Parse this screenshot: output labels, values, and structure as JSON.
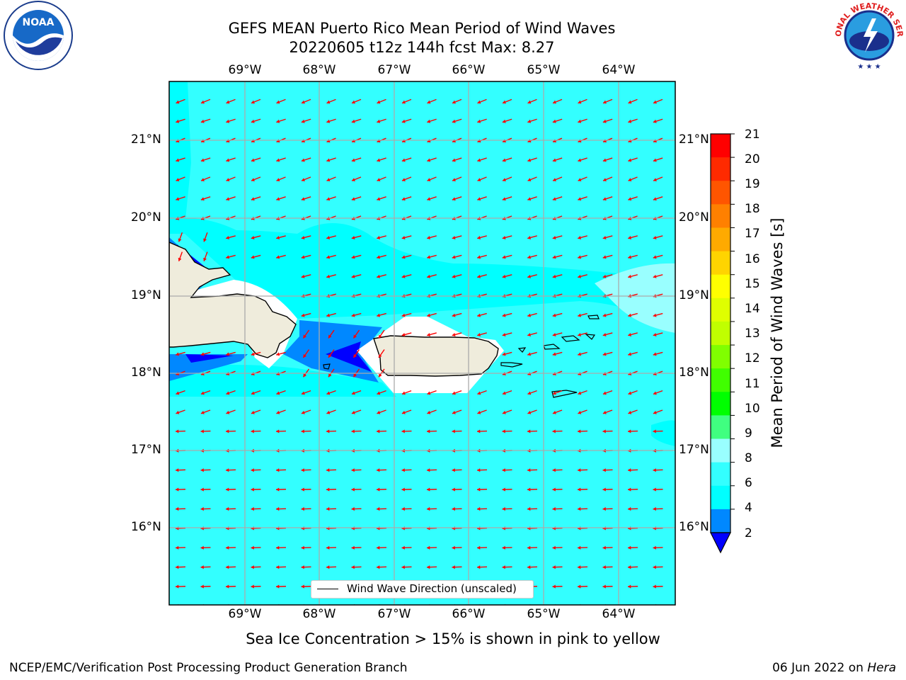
{
  "header": {
    "title_line1": "GEFS MEAN Puerto Rico Mean Period of Wind Waves",
    "title_line2": "20220605 t12z 144h fcst   Max: 8.27"
  },
  "map": {
    "lon_labels": [
      "69°W",
      "68°W",
      "67°W",
      "66°W",
      "65°W",
      "64°W"
    ],
    "lat_labels": [
      "21°N",
      "20°N",
      "19°N",
      "18°N",
      "17°N",
      "16°N"
    ],
    "land_color": "#efecdc",
    "ocean_color": "#33ffff",
    "arrow_color": "#ff0000",
    "legend_label": "Wind Wave Direction (unscaled)"
  },
  "colorbar": {
    "label": "Mean Period of Wind Waves [s]",
    "ticks": [
      "21",
      "20",
      "19",
      "18",
      "17",
      "16",
      "15",
      "14",
      "13",
      "12",
      "11",
      "10",
      "9",
      "8",
      "6",
      "4",
      "2"
    ],
    "colors": [
      "#ff0000",
      "#ff2a00",
      "#ff5500",
      "#ff8000",
      "#ffaa00",
      "#ffd400",
      "#ffff00",
      "#dfff00",
      "#c0ff00",
      "#80ff00",
      "#40ff00",
      "#00ff00",
      "#40ff80",
      "#99ffff",
      "#33ffff",
      "#00ffff",
      "#0088ff"
    ],
    "under_color": "#0000ff"
  },
  "footer": {
    "subtitle": "Sea Ice Concentration > 15% is shown in pink to yellow",
    "left": "NCEP/EMC/Verification Post Processing Product Generation Branch",
    "right_date": "06 Jun 2022 on ",
    "right_host": "Hera"
  },
  "logos": {
    "noaa": "NOAA",
    "nws": "NATIONAL WEATHER SERVICE"
  }
}
